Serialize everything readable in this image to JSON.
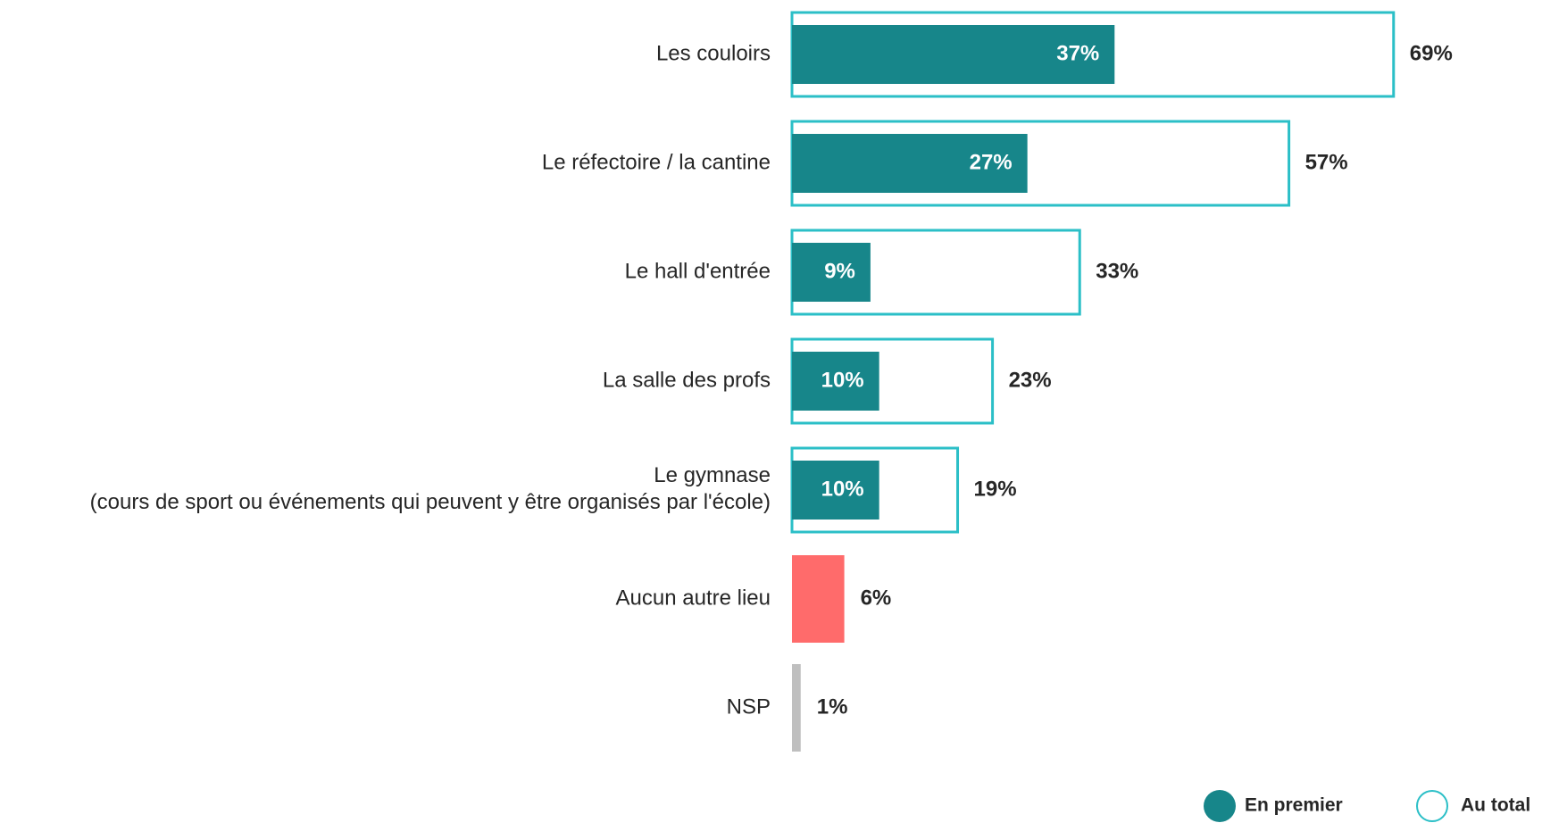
{
  "chart_data": {
    "type": "bar",
    "orientation": "horizontal",
    "categories": [
      "Les couloirs",
      "Le réfectoire / la cantine",
      "Le hall d'entrée",
      "La salle des profs",
      "Le gymnase\n(cours de sport ou événements qui peuvent y être organisés par l'école)",
      "Aucun autre lieu",
      "NSP"
    ],
    "series": [
      {
        "name": "En premier",
        "color": "#17868a",
        "values": [
          37,
          27,
          9,
          10,
          10,
          null,
          null
        ],
        "value_labels": [
          "37%",
          "27%",
          "9%",
          "10%",
          "10%",
          null,
          null
        ]
      },
      {
        "name": "Au total",
        "color": "#2bbfc7",
        "point_colors": [
          "#2bbfc7",
          "#2bbfc7",
          "#2bbfc7",
          "#2bbfc7",
          "#2bbfc7",
          "#ff6b6b",
          "#bfbfbf"
        ],
        "values": [
          69,
          57,
          33,
          23,
          19,
          6,
          1
        ],
        "value_labels": [
          "69%",
          "57%",
          "33%",
          "23%",
          "19%",
          "6%",
          "1%"
        ]
      }
    ],
    "xlim": [
      0,
      85
    ],
    "legend": "bottom-right"
  }
}
